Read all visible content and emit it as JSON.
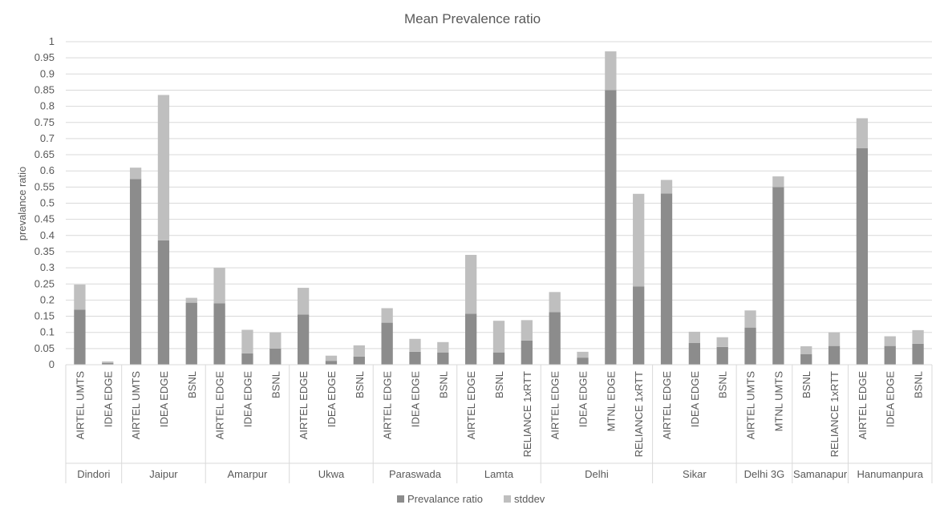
{
  "chart_data": {
    "type": "bar",
    "stacked": true,
    "title": "Mean Prevalence ratio",
    "ylabel": "prevalance ratio",
    "xlabel": "",
    "ylim": [
      0,
      1
    ],
    "yticks": [
      0,
      0.05,
      0.1,
      0.15,
      0.2,
      0.25,
      0.3,
      0.35,
      0.4,
      0.45,
      0.5,
      0.55,
      0.6,
      0.65,
      0.7,
      0.75,
      0.8,
      0.85,
      0.9,
      0.95,
      1
    ],
    "ytick_labels": [
      "0",
      "0.05",
      "0.1",
      "0.15",
      "0.2",
      "0.25",
      "0.3",
      "0.35",
      "0.4",
      "0.45",
      "0.5",
      "0.55",
      "0.6",
      "0.65",
      "0.7",
      "0.75",
      "0.8",
      "0.85",
      "0.9",
      "0.95",
      "1"
    ],
    "grid": true,
    "legend_position": "bottom",
    "groups": [
      {
        "name": "Dindori",
        "categories": [
          "AIRTEL UMTS",
          "IDEA EDGE"
        ]
      },
      {
        "name": "Jaipur",
        "categories": [
          "AIRTEL UMTS",
          "IDEA EDGE",
          "BSNL"
        ]
      },
      {
        "name": "Amarpur",
        "categories": [
          "AIRTEL EDGE",
          "IDEA EDGE",
          "BSNL"
        ]
      },
      {
        "name": "Ukwa",
        "categories": [
          "AIRTEL EDGE",
          "IDEA EDGE",
          "BSNL"
        ]
      },
      {
        "name": "Paraswada",
        "categories": [
          "AIRTEL EDGE",
          "IDEA EDGE",
          "BSNL"
        ]
      },
      {
        "name": "Lamta",
        "categories": [
          "AIRTEL EDGE",
          "BSNL",
          "RELIANCE 1xRTT"
        ]
      },
      {
        "name": "Delhi",
        "categories": [
          "AIRTEL EDGE",
          "IDEA EDGE",
          "MTNL EDGE",
          "RELIANCE 1xRTT"
        ]
      },
      {
        "name": "Sikar",
        "categories": [
          "AIRTEL EDGE",
          "IDEA EDGE",
          "BSNL"
        ]
      },
      {
        "name": "Delhi 3G",
        "categories": [
          "AIRTEL UMTS",
          "MTNL UMTS"
        ]
      },
      {
        "name": "Samanapur",
        "categories": [
          "BSNL",
          "RELIANCE 1xRTT"
        ]
      },
      {
        "name": "Hanumanpura",
        "categories": [
          "AIRTEL EDGE",
          "IDEA EDGE",
          "BSNL"
        ]
      }
    ],
    "series": [
      {
        "name": "Prevalance ratio",
        "color": "#8c8c8c",
        "values": [
          0.17,
          0.005,
          0.575,
          0.385,
          0.192,
          0.19,
          0.035,
          0.05,
          0.155,
          0.012,
          0.025,
          0.13,
          0.04,
          0.038,
          0.158,
          0.038,
          0.075,
          0.163,
          0.022,
          0.85,
          0.242,
          0.53,
          0.067,
          0.055,
          0.115,
          0.55,
          0.033,
          0.058,
          0.67,
          0.058,
          0.065
        ]
      },
      {
        "name": "stddev",
        "color": "#bfbfbf",
        "values": [
          0.078,
          0.005,
          0.035,
          0.45,
          0.015,
          0.11,
          0.073,
          0.05,
          0.083,
          0.016,
          0.035,
          0.045,
          0.04,
          0.032,
          0.182,
          0.098,
          0.063,
          0.062,
          0.018,
          0.12,
          0.287,
          0.042,
          0.035,
          0.03,
          0.053,
          0.033,
          0.024,
          0.042,
          0.093,
          0.03,
          0.042
        ]
      }
    ]
  }
}
